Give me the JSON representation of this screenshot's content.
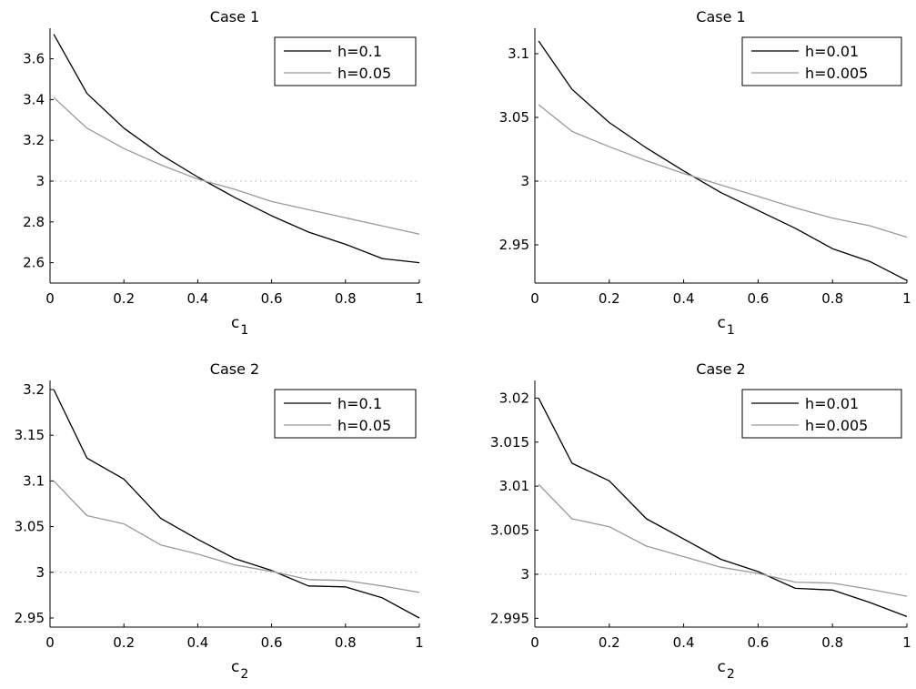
{
  "chart_data": [
    {
      "type": "line",
      "title": "Case 1",
      "xlabel": "c",
      "xlabel_sub": "1",
      "ylabel": "",
      "xlim": [
        0,
        1
      ],
      "ylim": [
        2.5,
        3.75
      ],
      "xticks": [
        0,
        0.2,
        0.4,
        0.6,
        0.8,
        1
      ],
      "xtick_labels": [
        "0",
        "0.2",
        "0.4",
        "0.6",
        "0.8",
        "1"
      ],
      "yticks": [
        2.6,
        2.8,
        3.0,
        3.2,
        3.4,
        3.6
      ],
      "ytick_labels": [
        "2.6",
        "2.8",
        "3",
        "3.2",
        "3.4",
        "3.6"
      ],
      "reference_line": 3,
      "legend_position": "top-right",
      "x": [
        0.01,
        0.1,
        0.2,
        0.3,
        0.4,
        0.5,
        0.6,
        0.7,
        0.8,
        0.9,
        1.0
      ],
      "series": [
        {
          "name": "h=0.1",
          "color": "#000000",
          "values": [
            3.72,
            3.43,
            3.26,
            3.13,
            3.02,
            2.92,
            2.83,
            2.75,
            2.69,
            2.62,
            2.6
          ]
        },
        {
          "name": "h=0.05",
          "color": "#999999",
          "values": [
            3.41,
            3.26,
            3.16,
            3.08,
            3.01,
            2.96,
            2.9,
            2.86,
            2.82,
            2.78,
            2.74
          ]
        }
      ]
    },
    {
      "type": "line",
      "title": "Case 1",
      "xlabel": "c",
      "xlabel_sub": "1",
      "ylabel": "",
      "xlim": [
        0,
        1
      ],
      "ylim": [
        2.92,
        3.12
      ],
      "xticks": [
        0,
        0.2,
        0.4,
        0.6,
        0.8,
        1
      ],
      "xtick_labels": [
        "0",
        "0.2",
        "0.4",
        "0.6",
        "0.8",
        "1"
      ],
      "yticks": [
        2.95,
        3.0,
        3.05,
        3.1
      ],
      "ytick_labels": [
        "2.95",
        "3",
        "3.05",
        "3.1"
      ],
      "reference_line": 3,
      "legend_position": "top-right",
      "x": [
        0.01,
        0.1,
        0.2,
        0.3,
        0.4,
        0.5,
        0.6,
        0.7,
        0.8,
        0.9,
        1.0
      ],
      "series": [
        {
          "name": "h=0.01",
          "color": "#000000",
          "values": [
            3.11,
            3.072,
            3.046,
            3.026,
            3.008,
            2.991,
            2.977,
            2.963,
            2.947,
            2.937,
            2.922
          ]
        },
        {
          "name": "h=0.005",
          "color": "#999999",
          "values": [
            3.06,
            3.039,
            3.027,
            3.016,
            3.006,
            2.997,
            2.988,
            2.979,
            2.971,
            2.965,
            2.956
          ]
        }
      ]
    },
    {
      "type": "line",
      "title": "Case 2",
      "xlabel": "c",
      "xlabel_sub": "2",
      "ylabel": "",
      "xlim": [
        0,
        1
      ],
      "ylim": [
        2.94,
        3.21
      ],
      "xticks": [
        0,
        0.2,
        0.4,
        0.6,
        0.8,
        1
      ],
      "xtick_labels": [
        "0",
        "0.2",
        "0.4",
        "0.6",
        "0.8",
        "1"
      ],
      "yticks": [
        2.95,
        3.0,
        3.05,
        3.1,
        3.15,
        3.2
      ],
      "ytick_labels": [
        "2.95",
        "3",
        "3.05",
        "3.1",
        "3.15",
        "3.2"
      ],
      "reference_line": 3,
      "legend_position": "top-right",
      "x": [
        0.01,
        0.1,
        0.2,
        0.3,
        0.4,
        0.5,
        0.6,
        0.7,
        0.8,
        0.9,
        1.0
      ],
      "series": [
        {
          "name": "h=0.1",
          "color": "#000000",
          "values": [
            3.2,
            3.125,
            3.102,
            3.059,
            3.036,
            3.015,
            3.002,
            2.985,
            2.984,
            2.972,
            2.95
          ]
        },
        {
          "name": "h=0.05",
          "color": "#999999",
          "values": [
            3.1,
            3.062,
            3.053,
            3.03,
            3.02,
            3.008,
            3.001,
            2.992,
            2.991,
            2.985,
            2.978
          ]
        }
      ]
    },
    {
      "type": "line",
      "title": "Case 2",
      "xlabel": "c",
      "xlabel_sub": "2",
      "ylabel": "",
      "xlim": [
        0,
        1
      ],
      "ylim": [
        2.994,
        3.022
      ],
      "xticks": [
        0,
        0.2,
        0.4,
        0.6,
        0.8,
        1
      ],
      "xtick_labels": [
        "0",
        "0.2",
        "0.4",
        "0.6",
        "0.8",
        "1"
      ],
      "yticks": [
        2.995,
        3.0,
        3.005,
        3.01,
        3.015,
        3.02
      ],
      "ytick_labels": [
        "2.995",
        "3",
        "3.005",
        "3.01",
        "3.015",
        "3.02"
      ],
      "reference_line": 3,
      "legend_position": "top-right",
      "x": [
        0.01,
        0.1,
        0.2,
        0.3,
        0.4,
        0.5,
        0.6,
        0.7,
        0.8,
        0.9,
        1.0
      ],
      "series": [
        {
          "name": "h=0.01",
          "color": "#000000",
          "values": [
            3.02,
            3.0126,
            3.0106,
            3.0063,
            3.004,
            3.0017,
            3.0003,
            2.9984,
            2.9982,
            2.9968,
            2.9952
          ]
        },
        {
          "name": "h=0.005",
          "color": "#999999",
          "values": [
            3.0102,
            3.0063,
            3.0054,
            3.0032,
            3.002,
            3.0008,
            3.0001,
            2.9991,
            2.999,
            2.9983,
            2.9975
          ]
        }
      ]
    }
  ]
}
